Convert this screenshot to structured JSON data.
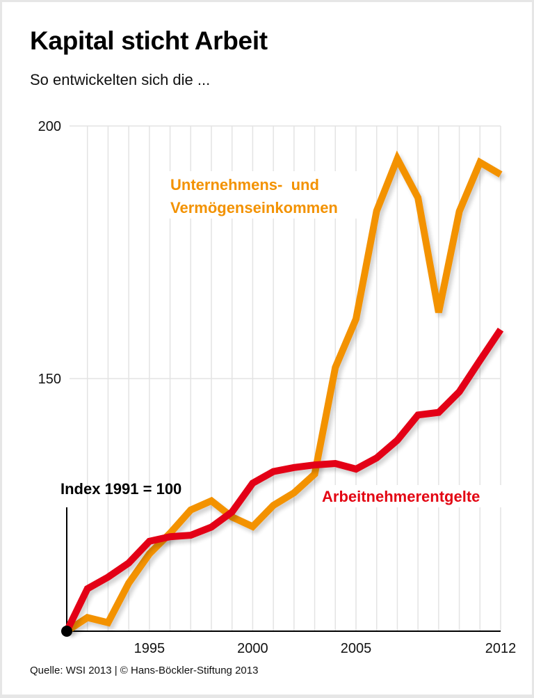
{
  "header": {
    "title": "Kapital sticht Arbeit",
    "subtitle": "So entwickelten sich die ..."
  },
  "footer": {
    "source": "Quelle: WSI 2013 | © Hans-Böckler-Stiftung 2013"
  },
  "colors": {
    "capital": "#f39200",
    "labor": "#e30613",
    "grid": "#e3e3e3",
    "axis": "#000000"
  },
  "chart_data": {
    "type": "line",
    "title": "Kapital sticht Arbeit",
    "subtitle": "So entwickelten sich die ...",
    "xlabel": "",
    "ylabel": "",
    "index_note": "Index 1991 = 100",
    "x": [
      1991,
      1992,
      1993,
      1994,
      1995,
      1996,
      1997,
      1998,
      1999,
      2000,
      2001,
      2002,
      2003,
      2004,
      2005,
      2006,
      2007,
      2008,
      2009,
      2010,
      2011,
      2012
    ],
    "xlim": [
      1991,
      2012
    ],
    "ylim": [
      100,
      200
    ],
    "x_ticks": [
      {
        "value": 1995,
        "label": "1995"
      },
      {
        "value": 2000,
        "label": "2000"
      },
      {
        "value": 2005,
        "label": "2005"
      },
      {
        "value": 2012,
        "label": "2012"
      }
    ],
    "y_ticks": [
      {
        "value": 150,
        "label": "150"
      },
      {
        "value": 200,
        "label": "200"
      }
    ],
    "grid": true,
    "series": [
      {
        "name": "Unternehmens-  und Vermögenseinkommen",
        "label_lines": [
          "Unternehmens-  und",
          "Vermögenseinkommen"
        ],
        "color": "#f39200",
        "values": [
          100,
          102.7,
          101.7,
          109.5,
          115.3,
          119.4,
          124.0,
          125.8,
          122.6,
          120.7,
          124.9,
          127.4,
          131.1,
          152.2,
          161.8,
          183.2,
          193.5,
          185.8,
          163.1,
          183.1,
          192.8,
          190.4
        ]
      },
      {
        "name": "Arbeitnehmerentgelte",
        "label_lines": [
          "Arbeitnehmerentgelte"
        ],
        "color": "#e30613",
        "values": [
          100,
          108.4,
          110.7,
          113.5,
          117.8,
          118.7,
          119.0,
          120.6,
          123.6,
          129.3,
          131.6,
          132.4,
          132.9,
          133.2,
          132.1,
          134.3,
          137.8,
          142.8,
          143.3,
          147.4,
          153.6,
          159.7
        ]
      }
    ],
    "legend": "inline labels"
  }
}
